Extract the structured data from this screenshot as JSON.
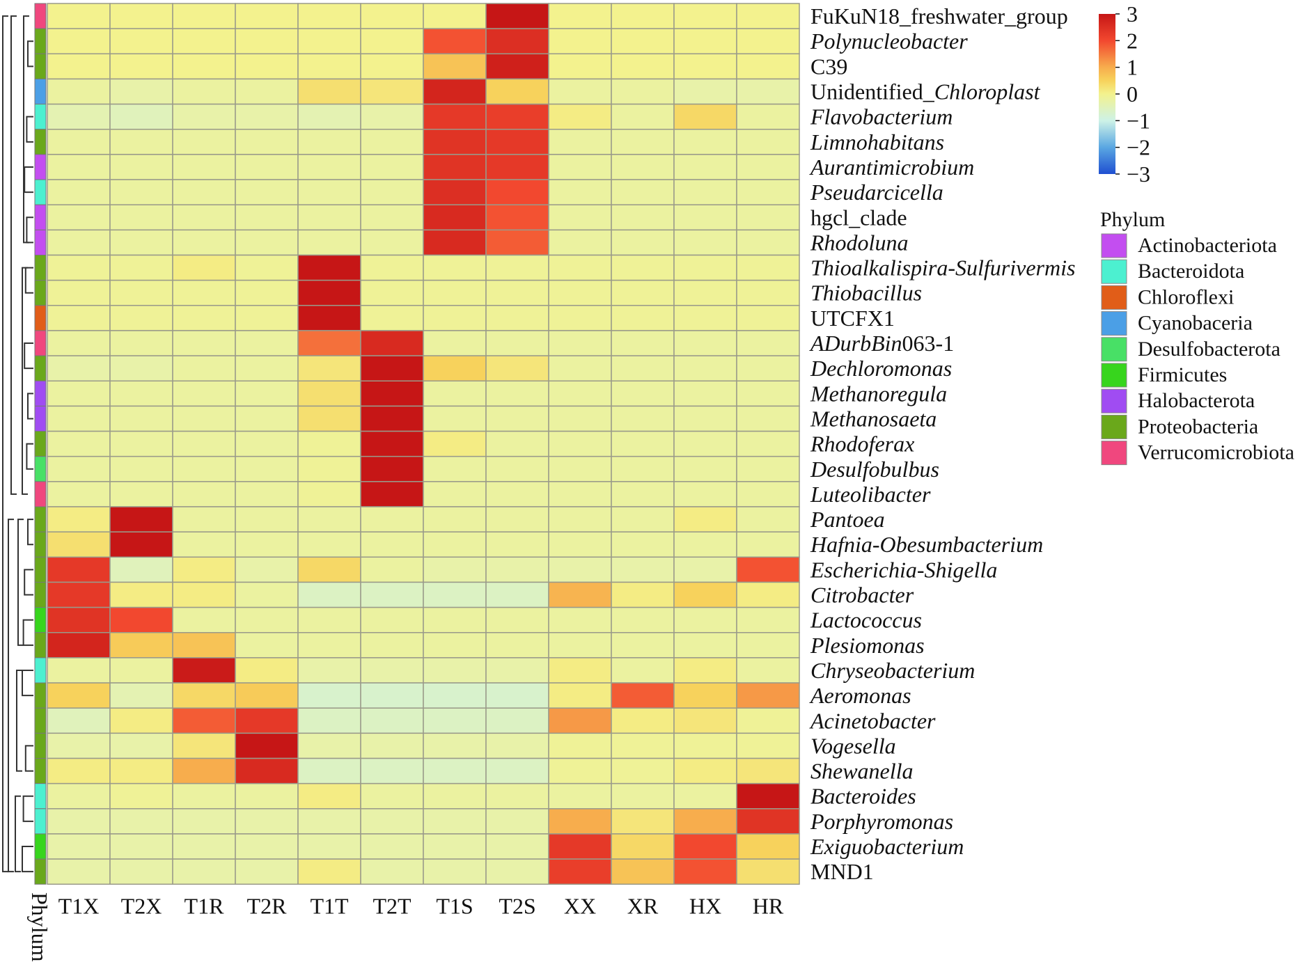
{
  "chart_data": {
    "type": "heatmap",
    "columns": [
      "T1X",
      "T2X",
      "T1R",
      "T2R",
      "T1T",
      "T2T",
      "T1S",
      "T2S",
      "XX",
      "XR",
      "HX",
      "HR"
    ],
    "phylum_axis_label": "Phylum",
    "rows": [
      {
        "label": "FuKuN18_freshwater_group",
        "label_parts": [
          {
            "t": "FuKuN18_freshwater_group",
            "i": false
          }
        ],
        "phylum": "Verrucomicrobiota",
        "values": [
          0,
          0,
          0,
          0,
          0,
          0,
          0,
          3,
          0,
          0,
          0,
          0
        ]
      },
      {
        "label": "Polynucleobacter",
        "label_parts": [
          {
            "t": "Polynucleobacter",
            "i": true
          }
        ],
        "phylum": "Proteobacteria",
        "values": [
          0,
          0,
          0,
          0,
          0,
          0,
          1.9,
          2.5,
          0,
          0,
          0,
          0
        ]
      },
      {
        "label": "C39",
        "label_parts": [
          {
            "t": "C39",
            "i": false
          }
        ],
        "phylum": "Proteobacteria",
        "values": [
          0,
          0,
          0,
          0,
          0,
          0,
          0.7,
          2.8,
          0,
          0,
          0,
          0
        ]
      },
      {
        "label": "Unidentified_Chloroplast",
        "label_parts": [
          {
            "t": "Unidentified_",
            "i": false
          },
          {
            "t": "Chloroplast",
            "i": true
          }
        ],
        "phylum": "Cyanobaceria",
        "values": [
          -0.2,
          -0.3,
          -0.2,
          -0.2,
          0.3,
          0.2,
          2.7,
          0.5,
          -0.2,
          -0.2,
          -0.3,
          -0.3
        ]
      },
      {
        "label": "Flavobacterium",
        "label_parts": [
          {
            "t": "Flavobacterium",
            "i": true
          }
        ],
        "phylum": "Bacteroidota",
        "values": [
          -0.4,
          -0.5,
          -0.3,
          -0.3,
          -0.4,
          -0.3,
          2.3,
          2.2,
          0.1,
          -0.2,
          0.4,
          -0.2
        ]
      },
      {
        "label": "Limnohabitans",
        "label_parts": [
          {
            "t": "Limnohabitans",
            "i": true
          }
        ],
        "phylum": "Proteobacteria",
        "values": [
          -0.2,
          -0.2,
          -0.2,
          -0.2,
          -0.2,
          -0.2,
          2.4,
          2.3,
          -0.2,
          -0.2,
          -0.2,
          -0.2
        ]
      },
      {
        "label": "Aurantimicrobium",
        "label_parts": [
          {
            "t": "Aurantimicrobium",
            "i": true
          }
        ],
        "phylum": "Actinobacteriota",
        "values": [
          -0.2,
          -0.2,
          -0.2,
          -0.2,
          -0.2,
          -0.2,
          2.4,
          2.3,
          -0.2,
          -0.2,
          -0.2,
          -0.2
        ]
      },
      {
        "label": "Pseudarcicella",
        "label_parts": [
          {
            "t": "Pseudarcicella",
            "i": true
          }
        ],
        "phylum": "Bacteroidota",
        "values": [
          -0.2,
          -0.2,
          -0.2,
          -0.2,
          -0.2,
          -0.2,
          2.5,
          2.0,
          -0.2,
          -0.2,
          -0.2,
          -0.2
        ]
      },
      {
        "label": "hgcl_clade",
        "label_parts": [
          {
            "t": "hgcl_clade",
            "i": false
          }
        ],
        "phylum": "Actinobacteriota",
        "values": [
          -0.2,
          -0.2,
          -0.2,
          -0.2,
          -0.2,
          -0.2,
          2.6,
          1.9,
          -0.2,
          -0.2,
          -0.2,
          -0.2
        ]
      },
      {
        "label": "Rhodoluna",
        "label_parts": [
          {
            "t": "Rhodoluna",
            "i": true
          }
        ],
        "phylum": "Actinobacteriota",
        "values": [
          -0.2,
          -0.2,
          -0.2,
          -0.2,
          -0.2,
          -0.2,
          2.6,
          1.8,
          -0.2,
          -0.2,
          -0.2,
          -0.2
        ]
      },
      {
        "label": "Thioalkalispira-Sulfurivermis",
        "label_parts": [
          {
            "t": "Thioalkalispira-Sulfurivermis",
            "i": true
          }
        ],
        "phylum": "Proteobacteria",
        "values": [
          -0.1,
          -0.1,
          0.1,
          -0.1,
          3,
          -0.1,
          -0.1,
          -0.1,
          -0.1,
          -0.1,
          -0.1,
          -0.1
        ]
      },
      {
        "label": "Thiobacillus",
        "label_parts": [
          {
            "t": "Thiobacillus",
            "i": true
          }
        ],
        "phylum": "Proteobacteria",
        "values": [
          -0.1,
          -0.1,
          -0.1,
          -0.1,
          3,
          -0.1,
          -0.1,
          -0.1,
          -0.1,
          -0.1,
          -0.1,
          -0.1
        ]
      },
      {
        "label": "UTCFX1",
        "label_parts": [
          {
            "t": "UTCFX1",
            "i": false
          }
        ],
        "phylum": "Chloroflexi",
        "values": [
          -0.1,
          -0.1,
          -0.1,
          -0.1,
          3,
          -0.1,
          -0.1,
          -0.1,
          -0.1,
          -0.1,
          -0.1,
          -0.1
        ]
      },
      {
        "label": "ADurbBin063-1",
        "label_parts": [
          {
            "t": "ADurbBin",
            "i": true
          },
          {
            "t": "063-1",
            "i": false
          }
        ],
        "phylum": "Verrucomicrobiota",
        "values": [
          -0.2,
          -0.2,
          -0.2,
          -0.2,
          1.6,
          2.6,
          -0.2,
          -0.2,
          -0.2,
          -0.2,
          -0.2,
          -0.2
        ]
      },
      {
        "label": "Dechloromonas",
        "label_parts": [
          {
            "t": "Dechloromonas",
            "i": true
          }
        ],
        "phylum": "Proteobacteria",
        "values": [
          -0.3,
          -0.3,
          -0.2,
          -0.2,
          0.2,
          3,
          0.5,
          0.2,
          -0.2,
          -0.2,
          -0.2,
          -0.2
        ]
      },
      {
        "label": "Methanoregula",
        "label_parts": [
          {
            "t": "Methanoregula",
            "i": true
          }
        ],
        "phylum": "Halobacterota",
        "values": [
          -0.2,
          -0.2,
          -0.2,
          -0.2,
          0.3,
          3,
          -0.2,
          -0.2,
          -0.2,
          -0.2,
          -0.2,
          -0.2
        ]
      },
      {
        "label": "Methanosaeta",
        "label_parts": [
          {
            "t": "Methanosaeta",
            "i": true
          }
        ],
        "phylum": "Halobacterota",
        "values": [
          -0.2,
          -0.2,
          -0.2,
          -0.2,
          0.3,
          3,
          -0.2,
          -0.2,
          -0.2,
          -0.2,
          -0.2,
          -0.2
        ]
      },
      {
        "label": "Rhodoferax",
        "label_parts": [
          {
            "t": "Rhodoferax",
            "i": true
          }
        ],
        "phylum": "Proteobacteria",
        "values": [
          -0.2,
          -0.2,
          -0.2,
          -0.2,
          -0.1,
          3,
          0.1,
          -0.2,
          -0.2,
          -0.2,
          -0.2,
          -0.2
        ]
      },
      {
        "label": "Desulfobulbus",
        "label_parts": [
          {
            "t": "Desulfobulbus",
            "i": true
          }
        ],
        "phylum": "Desulfobacterota",
        "values": [
          -0.2,
          -0.2,
          -0.2,
          -0.2,
          -0.1,
          3,
          -0.2,
          -0.2,
          -0.2,
          -0.2,
          -0.2,
          -0.2
        ]
      },
      {
        "label": "Luteolibacter",
        "label_parts": [
          {
            "t": "Luteolibacter",
            "i": true
          }
        ],
        "phylum": "Verrucomicrobiota",
        "values": [
          -0.2,
          -0.2,
          -0.2,
          -0.2,
          -0.1,
          3,
          -0.2,
          -0.2,
          -0.2,
          -0.2,
          -0.2,
          -0.2
        ]
      },
      {
        "label": "Pantoea",
        "label_parts": [
          {
            "t": "Pantoea",
            "i": true
          }
        ],
        "phylum": "Proteobacteria",
        "values": [
          0.1,
          3,
          -0.2,
          -0.2,
          -0.2,
          -0.2,
          -0.2,
          -0.2,
          -0.2,
          -0.2,
          0.1,
          -0.2
        ]
      },
      {
        "label": "Hafnia-Obesumbacterium",
        "label_parts": [
          {
            "t": "Hafnia-Obesumbacterium",
            "i": true
          }
        ],
        "phylum": "Proteobacteria",
        "values": [
          0.3,
          3,
          -0.2,
          -0.2,
          -0.2,
          -0.2,
          -0.2,
          -0.2,
          -0.2,
          -0.2,
          -0.2,
          -0.2
        ]
      },
      {
        "label": "Escherichia-Shigella",
        "label_parts": [
          {
            "t": "Escherichia-Shigella",
            "i": true
          }
        ],
        "phylum": "Proteobacteria",
        "values": [
          2.3,
          -0.5,
          0.1,
          -0.3,
          0.4,
          -0.2,
          -0.3,
          -0.3,
          -0.3,
          -0.3,
          -0.3,
          1.9
        ]
      },
      {
        "label": "Citrobacter",
        "label_parts": [
          {
            "t": "Citrobacter",
            "i": true
          }
        ],
        "phylum": "Proteobacteria",
        "values": [
          2.3,
          0.1,
          0.1,
          -0.2,
          -0.6,
          -0.6,
          -0.6,
          -0.6,
          0.9,
          0.1,
          0.5,
          0.1
        ]
      },
      {
        "label": "Lactococcus",
        "label_parts": [
          {
            "t": "Lactococcus",
            "i": true
          }
        ],
        "phylum": "Firmicutes",
        "values": [
          2.4,
          2.0,
          -0.2,
          -0.2,
          -0.2,
          -0.2,
          -0.2,
          -0.2,
          -0.2,
          -0.2,
          -0.2,
          -0.2
        ]
      },
      {
        "label": "Plesiomonas",
        "label_parts": [
          {
            "t": "Plesiomonas",
            "i": true
          }
        ],
        "phylum": "Proteobacteria",
        "values": [
          2.7,
          0.6,
          0.7,
          -0.2,
          -0.2,
          -0.2,
          -0.2,
          -0.2,
          -0.2,
          -0.2,
          -0.2,
          -0.2
        ]
      },
      {
        "label": "Chryseobacterium",
        "label_parts": [
          {
            "t": "Chryseobacterium",
            "i": true
          }
        ],
        "phylum": "Bacteroidota",
        "values": [
          -0.2,
          -0.2,
          2.9,
          0.1,
          -0.3,
          -0.3,
          -0.3,
          -0.3,
          0.1,
          -0.2,
          0.1,
          -0.2
        ]
      },
      {
        "label": "Aeromonas",
        "label_parts": [
          {
            "t": "Aeromonas",
            "i": true
          }
        ],
        "phylum": "Proteobacteria",
        "values": [
          0.5,
          -0.4,
          0.4,
          0.6,
          -0.7,
          -0.7,
          -0.7,
          -0.7,
          0.1,
          1.8,
          0.5,
          1.2
        ]
      },
      {
        "label": "Acinetobacter",
        "label_parts": [
          {
            "t": "Acinetobacter",
            "i": true
          }
        ],
        "phylum": "Proteobacteria",
        "values": [
          -0.5,
          0.1,
          1.8,
          2.3,
          -0.6,
          -0.6,
          -0.6,
          -0.6,
          1.2,
          0.1,
          0.2,
          -0.1
        ]
      },
      {
        "label": "Vogesella",
        "label_parts": [
          {
            "t": "Vogesella",
            "i": true
          }
        ],
        "phylum": "Proteobacteria",
        "values": [
          -0.3,
          -0.3,
          0.2,
          3,
          -0.3,
          -0.3,
          -0.3,
          -0.3,
          -0.1,
          -0.1,
          -0.1,
          -0.1
        ]
      },
      {
        "label": "Shewanella",
        "label_parts": [
          {
            "t": "Shewanella",
            "i": true
          }
        ],
        "phylum": "Proteobacteria",
        "values": [
          0.1,
          0.1,
          1.0,
          2.6,
          -0.6,
          -0.6,
          -0.6,
          -0.6,
          -0.1,
          -0.1,
          0.1,
          0.2
        ]
      },
      {
        "label": "Bacteroides",
        "label_parts": [
          {
            "t": "Bacteroides",
            "i": true
          }
        ],
        "phylum": "Bacteroidota",
        "values": [
          -0.2,
          -0.1,
          -0.2,
          -0.2,
          0.1,
          -0.2,
          -0.2,
          -0.2,
          -0.2,
          -0.2,
          -0.2,
          3
        ]
      },
      {
        "label": "Porphyromonas",
        "label_parts": [
          {
            "t": "Porphyromonas",
            "i": true
          }
        ],
        "phylum": "Bacteroidota",
        "values": [
          -0.3,
          -0.3,
          -0.3,
          -0.3,
          -0.3,
          -0.3,
          -0.3,
          -0.3,
          1.0,
          0.2,
          1.0,
          2.4
        ]
      },
      {
        "label": "Exiguobacterium",
        "label_parts": [
          {
            "t": "Exiguobacterium",
            "i": true
          }
        ],
        "phylum": "Firmicutes",
        "values": [
          -0.3,
          -0.3,
          -0.3,
          -0.3,
          -0.3,
          -0.3,
          -0.3,
          -0.3,
          2.3,
          0.4,
          2.0,
          0.5
        ]
      },
      {
        "label": "MND1",
        "label_parts": [
          {
            "t": "MND1",
            "i": false
          }
        ],
        "phylum": "Proteobacteria",
        "values": [
          -0.3,
          -0.3,
          -0.3,
          -0.3,
          0.1,
          -0.3,
          -0.3,
          -0.3,
          2.2,
          0.7,
          1.9,
          0.3
        ]
      }
    ],
    "color_scale": {
      "min": -3,
      "max": 3,
      "ticks": [
        3,
        2,
        1,
        0,
        -1,
        -2,
        -3
      ],
      "tick_labels": [
        "3",
        "2",
        "1",
        "0",
        "−1",
        "−2",
        "−3"
      ],
      "stops": [
        {
          "v": -3,
          "c": "#1f4fd1"
        },
        {
          "v": -2,
          "c": "#5aa7e2"
        },
        {
          "v": -1,
          "c": "#cdf2e7"
        },
        {
          "v": 0,
          "c": "#f3f28e"
        },
        {
          "v": 0.5,
          "c": "#f7d25c"
        },
        {
          "v": 1,
          "c": "#f7ad4d"
        },
        {
          "v": 2,
          "c": "#f2482f"
        },
        {
          "v": 3,
          "c": "#c61616"
        }
      ]
    },
    "phylum_legend": {
      "title": "Phylum",
      "items": [
        {
          "name": "Actinobacteriota",
          "color": "#c34ef0"
        },
        {
          "name": "Bacteroidota",
          "color": "#4cf0d0"
        },
        {
          "name": "Chloroflexi",
          "color": "#e15d18"
        },
        {
          "name": "Cyanobaceria",
          "color": "#4b9fe6"
        },
        {
          "name": "Desulfobacterota",
          "color": "#48e066"
        },
        {
          "name": "Firmicutes",
          "color": "#37d51d"
        },
        {
          "name": "Halobacterota",
          "color": "#a04cf2"
        },
        {
          "name": "Proteobacteria",
          "color": "#6aa81b"
        },
        {
          "name": "Verrucomicrobiota",
          "color": "#f0477e"
        }
      ]
    },
    "dendrogram": "row-clustering tree on left (unlabeled)",
    "grid": true
  }
}
